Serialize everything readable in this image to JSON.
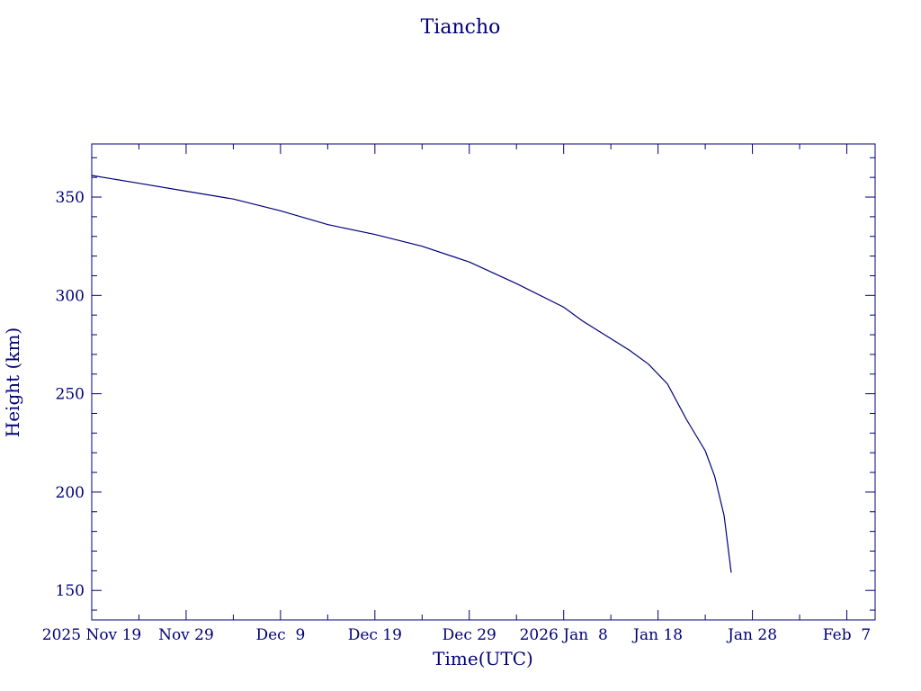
{
  "chart_data": {
    "type": "line",
    "title": "Tiancho",
    "xlabel": "Time(UTC)",
    "ylabel": "Height (km)",
    "xlim": [
      "2025-11-19",
      "2026-02-10"
    ],
    "ylim": [
      135,
      377
    ],
    "grid": false,
    "color": "#00007a",
    "x_ticks": [
      {
        "date": "2025-11-19",
        "label": "2025 Nov 19"
      },
      {
        "date": "2025-11-29",
        "label": "Nov 29"
      },
      {
        "date": "2025-12-09",
        "label": "Dec  9"
      },
      {
        "date": "2025-12-19",
        "label": "Dec 19"
      },
      {
        "date": "2025-12-29",
        "label": "Dec 29"
      },
      {
        "date": "2026-01-08",
        "label": "2026 Jan  8"
      },
      {
        "date": "2026-01-18",
        "label": "Jan 18"
      },
      {
        "date": "2026-01-28",
        "label": "Jan 28"
      },
      {
        "date": "2026-02-07",
        "label": "Feb  7"
      }
    ],
    "y_ticks": [
      150,
      200,
      250,
      300,
      350
    ],
    "series": [
      {
        "x": [
          "2025-11-19",
          "2025-11-24",
          "2025-11-29",
          "2025-12-04",
          "2025-12-09",
          "2025-12-14",
          "2025-12-19",
          "2025-12-24",
          "2025-12-29",
          "2026-01-03",
          "2026-01-08",
          "2026-01-10",
          "2026-01-13",
          "2026-01-15",
          "2026-01-17",
          "2026-01-19",
          "2026-01-21",
          "2026-01-22",
          "2026-01-23",
          "2026-01-24",
          "2026-01-25",
          "2026-01-25T18:00"
        ],
        "y": [
          361,
          357,
          353,
          349,
          343,
          336,
          331,
          325,
          317,
          306,
          294,
          287,
          278,
          272,
          265,
          255,
          237,
          229,
          221,
          208,
          188,
          159
        ]
      }
    ]
  }
}
